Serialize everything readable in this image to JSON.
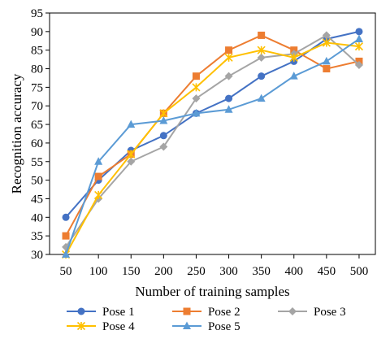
{
  "chart_data": {
    "type": "line",
    "title": "",
    "xlabel": "Number of training samples",
    "ylabel": "Recognition accuracy",
    "x": [
      50,
      100,
      150,
      200,
      250,
      300,
      350,
      400,
      450,
      500
    ],
    "xlim": [
      25,
      525
    ],
    "ylim": [
      30,
      95
    ],
    "yticks": [
      30,
      35,
      40,
      45,
      50,
      55,
      60,
      65,
      70,
      75,
      80,
      85,
      90,
      95
    ],
    "grid": false,
    "legend": "bottom",
    "series": [
      {
        "name": "Pose 1",
        "color": "#4472C4",
        "marker": "circle",
        "values": [
          40,
          50,
          58,
          62,
          68,
          72,
          78,
          82,
          88,
          90
        ]
      },
      {
        "name": "Pose 2",
        "color": "#ED7D31",
        "marker": "square",
        "values": [
          35,
          51,
          57,
          68,
          78,
          85,
          89,
          85,
          80,
          82
        ]
      },
      {
        "name": "Pose 3",
        "color": "#A5A5A5",
        "marker": "diamond",
        "values": [
          32,
          45,
          55,
          59,
          72,
          78,
          83,
          84,
          89,
          81
        ]
      },
      {
        "name": "Pose 4",
        "color": "#FFC000",
        "marker": "star",
        "values": [
          30,
          46,
          57,
          68,
          75,
          83,
          85,
          83,
          87,
          86
        ]
      },
      {
        "name": "Pose 5",
        "color": "#5B9BD5",
        "marker": "triangle",
        "values": [
          30,
          55,
          65,
          66,
          68,
          69,
          72,
          78,
          82,
          88
        ]
      }
    ]
  }
}
